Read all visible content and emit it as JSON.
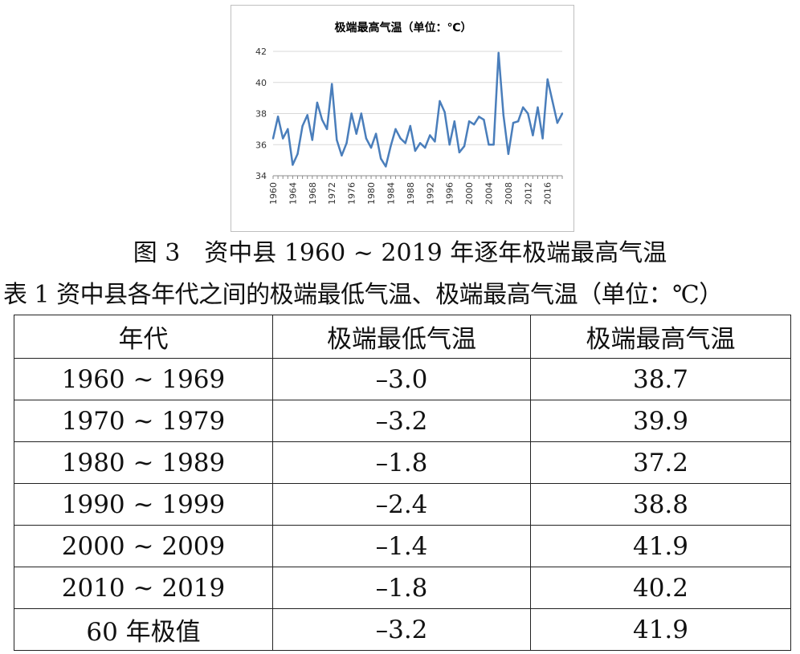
{
  "chart_data": {
    "type": "line",
    "title": "极端最高气温（单位：℃）",
    "xlabel": "",
    "ylabel": "",
    "ylim": [
      34,
      42
    ],
    "yticks": [
      34,
      36,
      38,
      40,
      42
    ],
    "xticks": [
      1960,
      1964,
      1968,
      1972,
      1976,
      1980,
      1984,
      1988,
      1992,
      1996,
      2000,
      2004,
      2008,
      2012,
      2016
    ],
    "grid": "horizontal",
    "legend": "none",
    "line_color": "#4a7ebb",
    "x": [
      1960,
      1961,
      1962,
      1963,
      1964,
      1965,
      1966,
      1967,
      1968,
      1969,
      1970,
      1971,
      1972,
      1973,
      1974,
      1975,
      1976,
      1977,
      1978,
      1979,
      1980,
      1981,
      1982,
      1983,
      1984,
      1985,
      1986,
      1987,
      1988,
      1989,
      1990,
      1991,
      1992,
      1993,
      1994,
      1995,
      1996,
      1997,
      1998,
      1999,
      2000,
      2001,
      2002,
      2003,
      2004,
      2005,
      2006,
      2007,
      2008,
      2009,
      2010,
      2011,
      2012,
      2013,
      2014,
      2015,
      2016,
      2017,
      2018,
      2019
    ],
    "y": [
      36.4,
      37.8,
      36.4,
      37.0,
      34.7,
      35.4,
      37.2,
      37.9,
      36.3,
      38.7,
      37.6,
      37.0,
      39.9,
      36.3,
      35.3,
      36.1,
      38.0,
      36.7,
      38.0,
      36.4,
      35.8,
      36.7,
      35.1,
      34.6,
      35.9,
      37.0,
      36.4,
      36.1,
      37.2,
      35.6,
      36.1,
      35.8,
      36.6,
      36.2,
      38.8,
      38.1,
      36.0,
      37.5,
      35.5,
      35.9,
      37.5,
      37.3,
      37.8,
      37.6,
      36.0,
      36.0,
      41.9,
      37.9,
      35.4,
      37.4,
      37.5,
      38.4,
      38.0,
      36.6,
      38.4,
      36.4,
      40.2,
      38.8,
      37.4,
      38.0
    ]
  },
  "figure": {
    "caption": "图 3　资中县 1960 ~ 2019 年逐年极端最高气温"
  },
  "table": {
    "title": "表 1 资中县各年代之间的极端最低气温、极端最高气温（单位：℃）",
    "headers": [
      "年代",
      "极端最低气温",
      "极端最高气温"
    ],
    "rows": [
      [
        "1960 ~ 1969",
        "–3.0",
        "38.7"
      ],
      [
        "1970 ~ 1979",
        "–3.2",
        "39.9"
      ],
      [
        "1980 ~ 1989",
        "–1.8",
        "37.2"
      ],
      [
        "1990 ~ 1999",
        "–2.4",
        "38.8"
      ],
      [
        "2000 ~ 2009",
        "–1.4",
        "41.9"
      ],
      [
        "2010 ~ 2019",
        "–1.8",
        "40.2"
      ],
      [
        "60 年极值",
        "–3.2",
        "41.9"
      ]
    ]
  }
}
